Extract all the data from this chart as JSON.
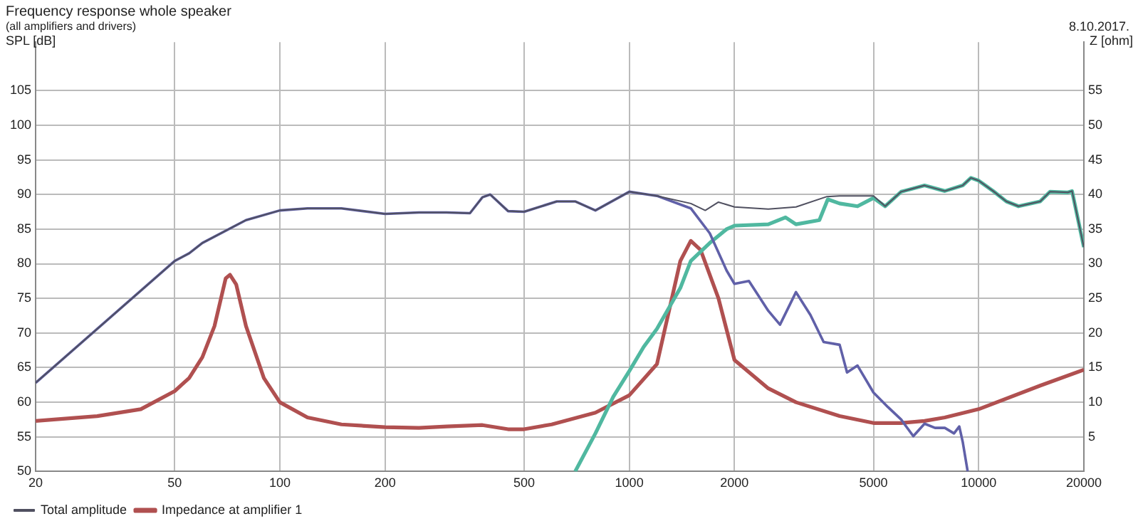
{
  "chart_data": {
    "type": "line",
    "title": "Frequency response whole speaker",
    "subtitle": "(all amplifiers and drivers)",
    "annotations": [
      "8.10.2017."
    ],
    "ylabel": "SPL [dB]",
    "y2label": "Z [ohm]",
    "log": "x",
    "grid": true,
    "legend": "bottom",
    "marker": "none",
    "line_style": "solid",
    "xlim": [
      20,
      20000
    ],
    "xticks": [
      20,
      50,
      100,
      200,
      500,
      1000,
      2000,
      5000,
      10000,
      20000
    ],
    "ylim": [
      50,
      112
    ],
    "yticks": [
      50,
      55,
      60,
      65,
      70,
      75,
      80,
      85,
      90,
      95,
      100,
      105
    ],
    "y2lim": [
      0,
      62
    ],
    "y2ticks": [
      5,
      10,
      15,
      20,
      25,
      30,
      35,
      40,
      45,
      50,
      55
    ],
    "series": [
      {
        "name": "Total amplitude",
        "color": "#505060",
        "x": [
          20,
          50,
          55,
          60,
          80,
          100,
          120,
          150,
          200,
          250,
          300,
          350,
          380,
          400,
          450,
          500,
          620,
          700,
          800,
          1000,
          1200,
          1500,
          1650,
          1800,
          2000,
          2500,
          3000,
          3680,
          4000,
          5000,
          5400,
          6000,
          7000,
          8000,
          9000,
          9500,
          10000,
          11000,
          12000,
          13000,
          15000,
          16000,
          18000,
          18500,
          20000
        ],
        "values": [
          62.8,
          80.4,
          81.5,
          83,
          86.3,
          87.7,
          88,
          88,
          87.2,
          87.4,
          87.4,
          87.3,
          89.6,
          90,
          87.6,
          87.5,
          89,
          89,
          87.7,
          90.4,
          89.8,
          88.7,
          87.7,
          88.9,
          88.2,
          87.9,
          88.2,
          89.7,
          89.8,
          89.8,
          88.3,
          90.4,
          91.3,
          90.5,
          91.3,
          92.4,
          92,
          90.5,
          89,
          88.3,
          89,
          90.4,
          90.3,
          90.5,
          82.4
        ]
      },
      {
        "color": "#6060a8",
        "x": [
          20,
          50,
          55,
          60,
          80,
          100,
          120,
          150,
          200,
          250,
          300,
          350,
          380,
          400,
          450,
          500,
          620,
          700,
          800,
          1000,
          1200,
          1500,
          1700,
          1900,
          2000,
          2200,
          2500,
          2700,
          3000,
          3300,
          3600,
          4000,
          4200,
          4500,
          5000,
          5500,
          6000,
          6500,
          7000,
          7500,
          8000,
          8500,
          8800,
          9000,
          9300
        ],
        "values": [
          62.8,
          80.4,
          81.5,
          83,
          86.3,
          87.7,
          88,
          88,
          87.2,
          87.4,
          87.4,
          87.3,
          89.6,
          90,
          87.6,
          87.5,
          89,
          89,
          87.7,
          90.4,
          89.8,
          88,
          84.4,
          79,
          77.1,
          77.5,
          73.2,
          71.2,
          75.9,
          72.6,
          68.7,
          68.3,
          64.3,
          65.3,
          61.4,
          59.3,
          57.5,
          55.1,
          56.9,
          56.3,
          56.3,
          55.5,
          56.5,
          54.3,
          50
        ]
      },
      {
        "color": "#50b8a0",
        "x": [
          700,
          800,
          900,
          1000,
          1100,
          1200,
          1400,
          1500,
          1700,
          1900,
          2000,
          2500,
          2800,
          3000,
          3500,
          3700,
          4000,
          4500,
          5000,
          5400,
          6000,
          7000,
          8000,
          9000,
          9500,
          10000,
          11000,
          12000,
          13000,
          15000,
          16000,
          18000,
          18500,
          20000
        ],
        "values": [
          50,
          55.5,
          60.8,
          64.5,
          68,
          70.6,
          76.5,
          80.4,
          83,
          85,
          85.5,
          85.7,
          86.7,
          85.7,
          86.3,
          89.3,
          88.7,
          88.3,
          89.5,
          88.3,
          90.4,
          91.3,
          90.5,
          91.3,
          92.4,
          92,
          90.5,
          89,
          88.3,
          89,
          90.4,
          90.3,
          90.5,
          82.4
        ]
      },
      {
        "name": "Impedance at amplifier 1",
        "color": "#b05050",
        "axis": "y2",
        "x": [
          20,
          30,
          40,
          50,
          55,
          60,
          65,
          70,
          72,
          75,
          80,
          90,
          100,
          120,
          150,
          200,
          250,
          300,
          380,
          450,
          500,
          600,
          800,
          1000,
          1200,
          1400,
          1500,
          1600,
          1800,
          2000,
          2500,
          3000,
          4000,
          5000,
          6000,
          7000,
          8000,
          10000,
          15000,
          20000
        ],
        "values": [
          7.3,
          8,
          9,
          11.6,
          13.5,
          16.5,
          21,
          27.9,
          28.4,
          27,
          21,
          13.5,
          10,
          7.8,
          6.8,
          6.4,
          6.3,
          6.5,
          6.7,
          6.1,
          6.1,
          6.8,
          8.5,
          11,
          15.5,
          30.4,
          33.3,
          32,
          25,
          16.1,
          12,
          10,
          8,
          7,
          7,
          7.3,
          7.8,
          9,
          12.4,
          14.7
        ]
      }
    ]
  }
}
